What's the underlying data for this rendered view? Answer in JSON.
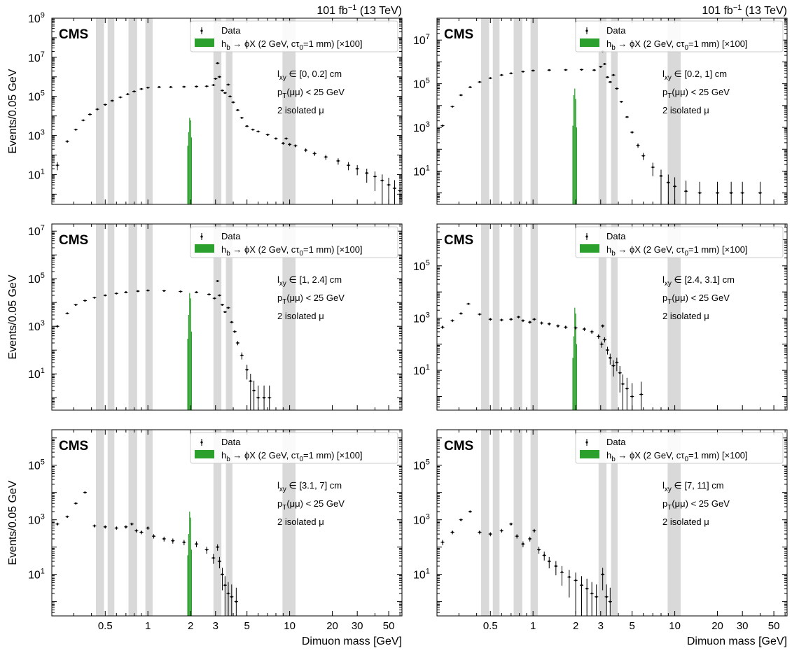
{
  "figure": {
    "lumi_label": "101 fb",
    "lumi_sup": "−1",
    "energy_label": " (13 TeV)",
    "experiment": "CMS",
    "xlabel": "Dimuon mass [GeV]",
    "ylabel": "Events/0.05 GeV",
    "legend": {
      "data": "Data",
      "signal": "h",
      "signal_sub": "b",
      "signal_rest": " → ϕX (2 GeV, cτ",
      "signal_sub2": "0",
      "signal_end": "=1 mm) [×100]"
    },
    "colors": {
      "signal": "#2ca02c",
      "veto_band": "#d9d9d9",
      "data": "#000000"
    },
    "x_tick_labels": [
      "0.5",
      "1",
      "2",
      "3",
      "5",
      "10",
      "20",
      "30",
      "50"
    ],
    "veto_bands_gev": [
      [
        0.43,
        0.49
      ],
      [
        0.52,
        0.58
      ],
      [
        0.73,
        0.84
      ],
      [
        0.96,
        1.08
      ],
      [
        2.9,
        3.3
      ],
      [
        3.55,
        3.95
      ],
      [
        8.9,
        11.0
      ]
    ],
    "pt_label": "p",
    "pt_sub": "T",
    "pt_rest": "(μμ) < 25 GeV",
    "iso_label": "2 isolated μ"
  },
  "chart_data": [
    {
      "type": "scatter",
      "xscale": "log",
      "yscale": "log",
      "xlim": [
        0.21,
        62
      ],
      "ylim": [
        0.3,
        1000000000.0
      ],
      "y_ticks": [
        {
          "v": 10,
          "t": "10",
          "e": "1"
        },
        {
          "v": 1000,
          "t": "10",
          "e": "3"
        },
        {
          "v": 100000,
          "t": "10",
          "e": "5"
        },
        {
          "v": 10000000,
          "t": "10",
          "e": "7"
        },
        {
          "v": 1000000000,
          "t": "10",
          "e": "9"
        }
      ],
      "lxy_label": "l",
      "lxy_sub": "xy",
      "lxy_range": " ∈ [0, 0.2] cm",
      "show_ylabel": true,
      "show_xlabel": false,
      "show_lumi": true,
      "data": [
        [
          0.23,
          30
        ],
        [
          0.27,
          500
        ],
        [
          0.31,
          2000
        ],
        [
          0.35,
          6000
        ],
        [
          0.39,
          12000
        ],
        [
          0.44,
          22000
        ],
        [
          0.5,
          38000
        ],
        [
          0.56,
          60000
        ],
        [
          0.64,
          90000
        ],
        [
          0.72,
          130000
        ],
        [
          0.8,
          180000
        ],
        [
          0.9,
          240000
        ],
        [
          1.0,
          280000
        ],
        [
          1.2,
          300000
        ],
        [
          1.45,
          300000
        ],
        [
          1.8,
          310000
        ],
        [
          2.2,
          320000
        ],
        [
          2.6,
          330000
        ],
        [
          2.9,
          380000
        ],
        [
          3.0,
          800000
        ],
        [
          3.1,
          5000000
        ],
        [
          3.2,
          1000000
        ],
        [
          3.35,
          200000
        ],
        [
          3.5,
          150000
        ],
        [
          3.69,
          400000
        ],
        [
          3.8,
          100000
        ],
        [
          4.0,
          50000
        ],
        [
          4.3,
          20000
        ],
        [
          4.6,
          8000
        ],
        [
          5.0,
          3000
        ],
        [
          5.5,
          2000
        ],
        [
          6.0,
          1600
        ],
        [
          7.0,
          1100
        ],
        [
          8.0,
          700
        ],
        [
          9.0,
          400
        ],
        [
          9.46,
          700
        ],
        [
          10.0,
          350
        ],
        [
          11.0,
          300
        ],
        [
          13.0,
          180
        ],
        [
          15.0,
          120
        ],
        [
          18.0,
          80
        ],
        [
          22.0,
          50
        ],
        [
          26.0,
          30
        ],
        [
          30.0,
          20
        ],
        [
          35.0,
          12
        ],
        [
          40.0,
          8
        ],
        [
          45.0,
          5
        ],
        [
          50.0,
          3
        ],
        [
          55.0,
          2
        ],
        [
          60.0,
          1.5
        ]
      ],
      "signal": [
        [
          1.91,
          300
        ],
        [
          1.94,
          1500
        ],
        [
          1.97,
          8000
        ],
        [
          2.0,
          6000
        ],
        [
          2.03,
          800
        ]
      ]
    },
    {
      "type": "scatter",
      "xscale": "log",
      "yscale": "log",
      "xlim": [
        0.21,
        62
      ],
      "ylim": [
        0.3,
        100000000.0
      ],
      "y_ticks": [
        {
          "v": 10,
          "t": "10",
          "e": "1"
        },
        {
          "v": 1000,
          "t": "10",
          "e": "3"
        },
        {
          "v": 100000,
          "t": "10",
          "e": "5"
        },
        {
          "v": 10000000,
          "t": "10",
          "e": "7"
        }
      ],
      "lxy_label": "l",
      "lxy_sub": "xy",
      "lxy_range": " ∈ [0.2, 1] cm",
      "show_ylabel": false,
      "show_xlabel": false,
      "show_lumi": true,
      "data": [
        [
          0.23,
          1200
        ],
        [
          0.27,
          9000
        ],
        [
          0.31,
          30000
        ],
        [
          0.36,
          70000
        ],
        [
          0.42,
          120000
        ],
        [
          0.5,
          180000
        ],
        [
          0.6,
          250000
        ],
        [
          0.7,
          300000
        ],
        [
          0.85,
          360000
        ],
        [
          1.0,
          400000
        ],
        [
          1.3,
          420000
        ],
        [
          1.7,
          430000
        ],
        [
          2.2,
          440000
        ],
        [
          2.7,
          420000
        ],
        [
          3.0,
          600000
        ],
        [
          3.1,
          3000000
        ],
        [
          3.2,
          800000
        ],
        [
          3.35,
          200000
        ],
        [
          3.5,
          120000
        ],
        [
          3.69,
          250000
        ],
        [
          3.9,
          60000
        ],
        [
          4.2,
          15000
        ],
        [
          4.6,
          3000
        ],
        [
          5.0,
          600
        ],
        [
          5.5,
          150
        ],
        [
          6.0,
          50
        ],
        [
          7.0,
          15
        ],
        [
          8.0,
          6
        ],
        [
          9.0,
          3
        ],
        [
          10.0,
          2
        ],
        [
          12.0,
          1.2
        ],
        [
          15.0,
          1
        ],
        [
          20.0,
          1
        ],
        [
          25.0,
          1
        ],
        [
          30.0,
          1
        ],
        [
          40.0,
          1
        ]
      ],
      "signal": [
        [
          1.91,
          1200
        ],
        [
          1.94,
          30000
        ],
        [
          1.97,
          60000
        ],
        [
          2.0,
          20000
        ],
        [
          2.03,
          1000
        ]
      ]
    },
    {
      "type": "scatter",
      "xscale": "log",
      "yscale": "log",
      "xlim": [
        0.21,
        62
      ],
      "ylim": [
        0.3,
        20000000.0
      ],
      "y_ticks": [
        {
          "v": 10,
          "t": "10",
          "e": "1"
        },
        {
          "v": 1000,
          "t": "10",
          "e": "3"
        },
        {
          "v": 100000,
          "t": "10",
          "e": "5"
        },
        {
          "v": 10000000,
          "t": "10",
          "e": "7"
        }
      ],
      "lxy_label": "l",
      "lxy_sub": "xy",
      "lxy_range": " ∈ [1, 2.4] cm",
      "show_ylabel": true,
      "show_xlabel": false,
      "show_lumi": false,
      "data": [
        [
          0.23,
          1000
        ],
        [
          0.27,
          3500
        ],
        [
          0.31,
          8000
        ],
        [
          0.36,
          12000
        ],
        [
          0.42,
          16000
        ],
        [
          0.5,
          20000
        ],
        [
          0.6,
          24000
        ],
        [
          0.7,
          27000
        ],
        [
          0.85,
          30000
        ],
        [
          1.0,
          32000
        ],
        [
          1.3,
          31000
        ],
        [
          1.7,
          29000
        ],
        [
          2.2,
          27000
        ],
        [
          2.7,
          22000
        ],
        [
          2.95,
          15000
        ],
        [
          3.1,
          80000
        ],
        [
          3.2,
          20000
        ],
        [
          3.35,
          8000
        ],
        [
          3.5,
          4000
        ],
        [
          3.69,
          6000
        ],
        [
          3.9,
          1500
        ],
        [
          4.1,
          600
        ],
        [
          4.3,
          200
        ],
        [
          4.6,
          60
        ],
        [
          5.0,
          15
        ],
        [
          5.3,
          5
        ],
        [
          5.6,
          2
        ],
        [
          6.0,
          1
        ],
        [
          6.6,
          1
        ],
        [
          7.2,
          1
        ]
      ],
      "signal": [
        [
          1.91,
          300
        ],
        [
          1.94,
          3000
        ],
        [
          1.97,
          25000
        ],
        [
          2.0,
          15000
        ],
        [
          2.03,
          600
        ]
      ]
    },
    {
      "type": "scatter",
      "xscale": "log",
      "yscale": "log",
      "xlim": [
        0.21,
        62
      ],
      "ylim": [
        0.3,
        4000000.0
      ],
      "y_ticks": [
        {
          "v": 10,
          "t": "10",
          "e": "1"
        },
        {
          "v": 1000,
          "t": "10",
          "e": "3"
        },
        {
          "v": 100000,
          "t": "10",
          "e": "5"
        }
      ],
      "lxy_label": "l",
      "lxy_sub": "xy",
      "lxy_range": " ∈ [2.4, 3.1] cm",
      "show_ylabel": false,
      "show_xlabel": false,
      "show_lumi": false,
      "data": [
        [
          0.23,
          450
        ],
        [
          0.27,
          800
        ],
        [
          0.31,
          1500
        ],
        [
          0.35,
          3500
        ],
        [
          0.42,
          1400
        ],
        [
          0.5,
          900
        ],
        [
          0.6,
          850
        ],
        [
          0.7,
          900
        ],
        [
          0.79,
          1100
        ],
        [
          0.85,
          800
        ],
        [
          0.95,
          700
        ],
        [
          1.02,
          900
        ],
        [
          1.15,
          650
        ],
        [
          1.3,
          600
        ],
        [
          1.5,
          500
        ],
        [
          1.7,
          450
        ],
        [
          2.0,
          420
        ],
        [
          2.3,
          380
        ],
        [
          2.6,
          300
        ],
        [
          2.9,
          200
        ],
        [
          3.05,
          100
        ],
        [
          3.1,
          500
        ],
        [
          3.2,
          150
        ],
        [
          3.35,
          60
        ],
        [
          3.5,
          30
        ],
        [
          3.69,
          15
        ],
        [
          3.9,
          20
        ],
        [
          4.1,
          8
        ],
        [
          4.3,
          3
        ],
        [
          4.6,
          2
        ],
        [
          5.0,
          1
        ],
        [
          5.8,
          1.2
        ]
      ],
      "signal": [
        [
          1.91,
          30
        ],
        [
          1.94,
          200
        ],
        [
          1.97,
          2500
        ],
        [
          2.0,
          1500
        ],
        [
          2.03,
          100
        ]
      ]
    },
    {
      "type": "scatter",
      "xscale": "log",
      "yscale": "log",
      "xlim": [
        0.21,
        62
      ],
      "ylim": [
        0.3,
        2000000.0
      ],
      "y_ticks": [
        {
          "v": 10,
          "t": "10",
          "e": "1"
        },
        {
          "v": 1000,
          "t": "10",
          "e": "3"
        },
        {
          "v": 100000,
          "t": "10",
          "e": "5"
        }
      ],
      "lxy_label": "l",
      "lxy_sub": "xy",
      "lxy_range": " ∈ [3.1, 7] cm",
      "show_ylabel": true,
      "show_xlabel": true,
      "show_lumi": false,
      "data": [
        [
          0.23,
          700
        ],
        [
          0.27,
          1300
        ],
        [
          0.31,
          4000
        ],
        [
          0.36,
          10000
        ],
        [
          0.42,
          600
        ],
        [
          0.5,
          550
        ],
        [
          0.6,
          500
        ],
        [
          0.7,
          550
        ],
        [
          0.77,
          700
        ],
        [
          0.83,
          400
        ],
        [
          0.9,
          350
        ],
        [
          1.0,
          500
        ],
        [
          1.1,
          250
        ],
        [
          1.3,
          200
        ],
        [
          1.5,
          170
        ],
        [
          1.8,
          150
        ],
        [
          2.2,
          130
        ],
        [
          2.6,
          80
        ],
        [
          2.9,
          40
        ],
        [
          3.1,
          100
        ],
        [
          3.2,
          30
        ],
        [
          3.35,
          10
        ],
        [
          3.5,
          4
        ],
        [
          3.69,
          2
        ],
        [
          3.9,
          1.5
        ],
        [
          4.2,
          1
        ]
      ],
      "signal": [
        [
          1.91,
          50
        ],
        [
          1.94,
          300
        ],
        [
          1.97,
          2000
        ],
        [
          2.0,
          1200
        ],
        [
          2.03,
          80
        ]
      ]
    },
    {
      "type": "scatter",
      "xscale": "log",
      "yscale": "log",
      "xlim": [
        0.21,
        62
      ],
      "ylim": [
        0.3,
        2000000.0
      ],
      "y_ticks": [
        {
          "v": 10,
          "t": "10",
          "e": "1"
        },
        {
          "v": 1000,
          "t": "10",
          "e": "3"
        },
        {
          "v": 100000,
          "t": "10",
          "e": "5"
        }
      ],
      "lxy_label": "l",
      "lxy_sub": "xy",
      "lxy_range": " ∈ [7, 11] cm",
      "show_ylabel": false,
      "show_xlabel": true,
      "show_lumi": false,
      "data": [
        [
          0.23,
          150
        ],
        [
          0.27,
          350
        ],
        [
          0.31,
          1000
        ],
        [
          0.36,
          2000
        ],
        [
          0.42,
          350
        ],
        [
          0.5,
          300
        ],
        [
          0.6,
          400
        ],
        [
          0.7,
          700
        ],
        [
          0.77,
          250
        ],
        [
          0.85,
          130
        ],
        [
          0.95,
          200
        ],
        [
          1.02,
          400
        ],
        [
          1.1,
          80
        ],
        [
          1.2,
          50
        ],
        [
          1.3,
          30
        ],
        [
          1.45,
          20
        ],
        [
          1.6,
          12
        ],
        [
          1.8,
          8
        ],
        [
          2.0,
          6
        ],
        [
          2.2,
          4
        ],
        [
          2.4,
          3
        ],
        [
          2.6,
          2
        ],
        [
          2.8,
          1.5
        ],
        [
          3.1,
          10
        ],
        [
          3.3,
          1.5
        ],
        [
          3.5,
          1
        ]
      ],
      "signal": []
    }
  ]
}
